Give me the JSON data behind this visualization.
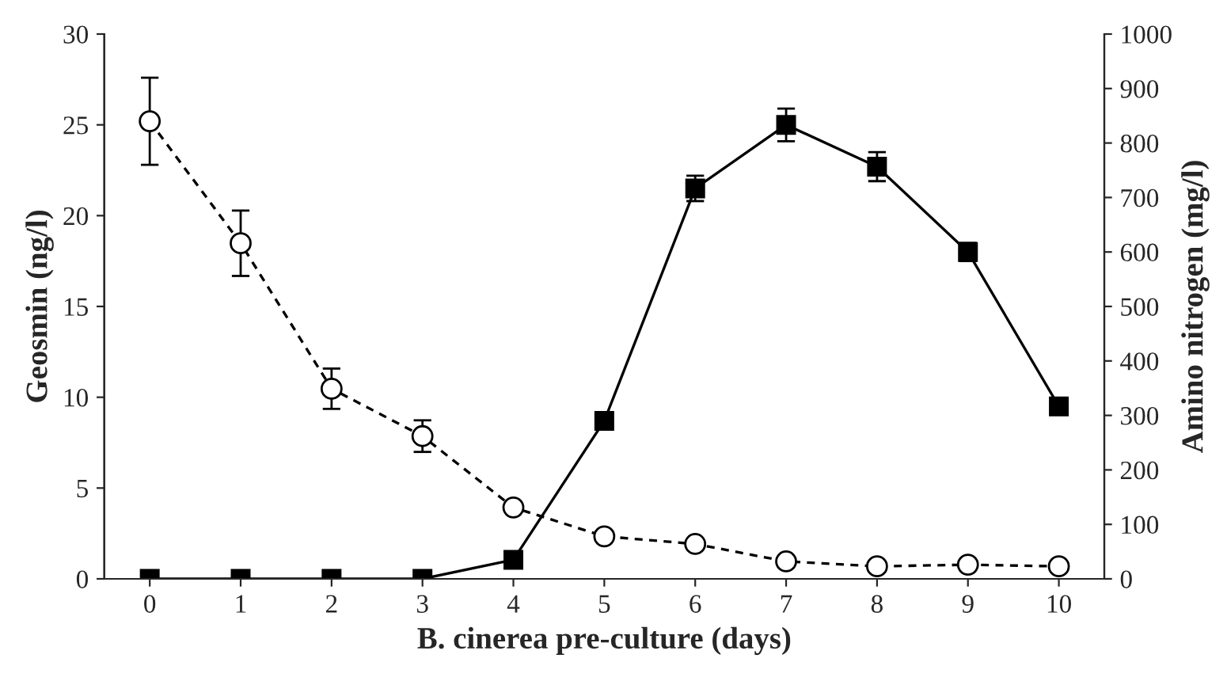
{
  "chart_data": {
    "type": "line",
    "xlabel": "B. cinerea pre-culture (days)",
    "ylabel": "Geosmin (ng/l)",
    "y2label": "Amino nitrogen (mg/l)",
    "x": [
      0,
      1,
      2,
      3,
      4,
      5,
      6,
      7,
      8,
      9,
      10
    ],
    "series": [
      {
        "color": "#000000",
        "marker": "square",
        "line_style": "solid",
        "values": [
          0,
          0,
          0,
          0,
          1.05,
          8.7,
          21.5,
          25.0,
          22.7,
          18.0,
          9.5
        ],
        "errors": [
          null,
          null,
          null,
          null,
          null,
          null,
          0.7,
          0.9,
          0.8,
          0.5,
          null
        ]
      },
      {
        "color": "#000000",
        "marker": "circle",
        "line_style": "dashed",
        "axis": "y2",
        "values": [
          840,
          616,
          349,
          262,
          131,
          78,
          64,
          32,
          23,
          26,
          23
        ],
        "errors": [
          80,
          60,
          37,
          29,
          null,
          null,
          null,
          null,
          null,
          null,
          null
        ]
      }
    ],
    "xlim": [
      -0.5,
      10.5
    ],
    "xticks": [
      0,
      1,
      2,
      3,
      4,
      5,
      6,
      7,
      8,
      9,
      10
    ],
    "ylim": [
      0,
      30
    ],
    "yticks": [
      0,
      5,
      10,
      15,
      20,
      25,
      30
    ],
    "y2lim": [
      0,
      1000
    ],
    "y2ticks": [
      0,
      100,
      200,
      300,
      400,
      500,
      600,
      700,
      800,
      900,
      1000
    ],
    "grid": false,
    "legend": false
  }
}
